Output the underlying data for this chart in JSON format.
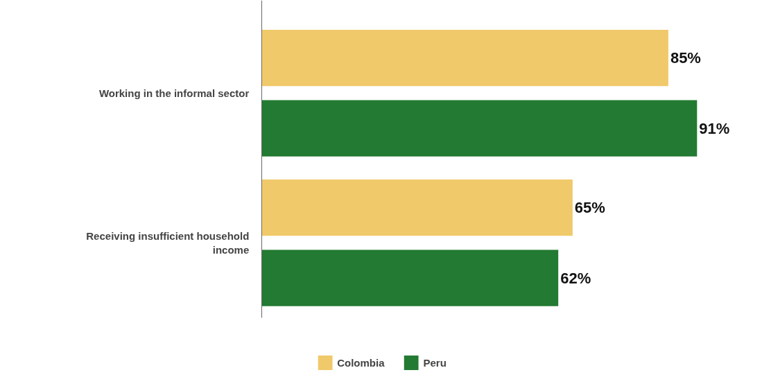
{
  "chart_data": {
    "type": "bar",
    "orientation": "horizontal",
    "categories": [
      "Working in the informal sector",
      "Receiving insufficient household income"
    ],
    "series": [
      {
        "name": "Colombia",
        "color": "#f0c96a",
        "values": [
          85,
          65
        ],
        "value_labels": [
          "85%",
          "65%"
        ]
      },
      {
        "name": "Peru",
        "color": "#237a32",
        "values": [
          91,
          62
        ],
        "value_labels": [
          "91%",
          "62%"
        ]
      }
    ],
    "legend": "bottom",
    "grid": false
  }
}
